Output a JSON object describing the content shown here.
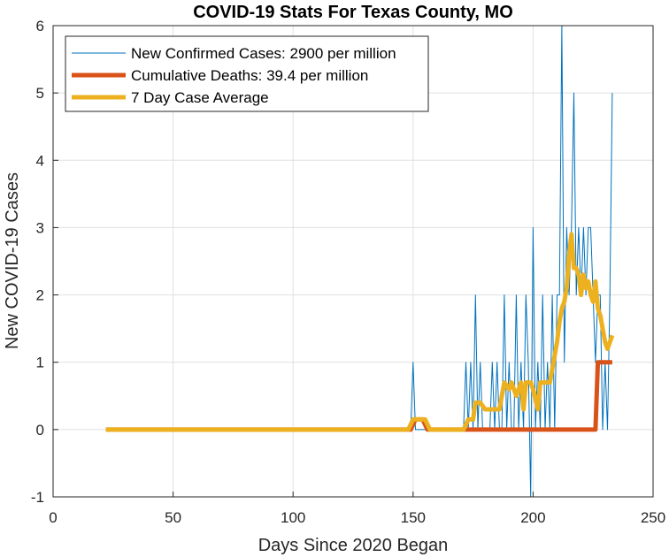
{
  "chart_data": {
    "type": "line",
    "title": "COVID-19 Stats For Texas County, MO",
    "xlabel": "Days Since 2020 Began",
    "ylabel": "New COVID-19 Cases",
    "xlim": [
      0,
      250
    ],
    "ylim": [
      -1,
      6
    ],
    "xticks": [
      0,
      50,
      100,
      150,
      200,
      250
    ],
    "yticks": [
      -1,
      0,
      1,
      2,
      3,
      4,
      5,
      6
    ],
    "grid": true,
    "legend_position": "top-left",
    "series": [
      {
        "name": "New Confirmed Cases: 2900 per million",
        "color": "#0072BD",
        "style": "thin",
        "x": [
          22,
          148,
          149,
          150,
          151,
          152,
          170,
          171,
          172,
          173,
          174,
          175,
          176,
          177,
          178,
          179,
          180,
          181,
          182,
          183,
          184,
          185,
          186,
          187,
          188,
          189,
          190,
          191,
          192,
          193,
          194,
          195,
          196,
          197,
          198,
          199,
          200,
          201,
          202,
          203,
          204,
          205,
          206,
          207,
          208,
          209,
          210,
          211,
          212,
          213,
          214,
          215,
          216,
          217,
          218,
          219,
          220,
          221,
          222,
          223,
          224,
          225,
          226,
          227,
          228,
          229,
          230,
          231,
          232,
          233
        ],
        "y": [
          0,
          0,
          0,
          1,
          0,
          0,
          0,
          0,
          1,
          0,
          1,
          0,
          2,
          0,
          1,
          0,
          0,
          0,
          0,
          1,
          0,
          1,
          0,
          0,
          2,
          0,
          1,
          0,
          0,
          2,
          0,
          1,
          0,
          2,
          1,
          -1,
          3,
          0,
          1,
          0,
          2,
          0,
          1,
          0,
          2,
          0,
          2,
          2,
          6,
          1,
          3,
          2,
          3,
          5,
          2,
          3,
          2,
          3,
          2,
          3,
          3,
          2,
          1,
          2,
          2,
          0,
          1,
          0,
          2,
          5
        ]
      },
      {
        "name": "Cumulative Deaths: 39.4 per million",
        "color": "#D95319",
        "style": "thick",
        "x": [
          22,
          149,
          151,
          154,
          156,
          171,
          172,
          226,
          227,
          233
        ],
        "y": [
          0,
          0,
          0.15,
          0.15,
          0,
          0,
          0,
          0,
          1,
          1
        ]
      },
      {
        "name": "7 Day Case Average",
        "color": "#EDB120",
        "style": "thick",
        "x": [
          22,
          148,
          150,
          152,
          155,
          157,
          171,
          173,
          175,
          176,
          178,
          180,
          182,
          184,
          186,
          187,
          188,
          190,
          191,
          193,
          195,
          196,
          197,
          199,
          200,
          202,
          203,
          205,
          207,
          208,
          210,
          211,
          212,
          213,
          214,
          215,
          216,
          217,
          218,
          219,
          220,
          221,
          222,
          223,
          224,
          225,
          226,
          227,
          228,
          229,
          230,
          231,
          232,
          233
        ],
        "y": [
          0,
          0,
          0.15,
          0.15,
          0.15,
          0,
          0,
          0.15,
          0.15,
          0.4,
          0.4,
          0.3,
          0.3,
          0.3,
          0.3,
          0.5,
          0.7,
          0.6,
          0.7,
          0.5,
          0.7,
          0.3,
          0.7,
          0.7,
          0.6,
          0.3,
          0.7,
          0.7,
          0.7,
          0.9,
          1.3,
          1.6,
          1.8,
          1.9,
          2.1,
          2.6,
          2.9,
          2.4,
          2.4,
          2.3,
          2.0,
          2.3,
          2.1,
          2.2,
          2.0,
          1.9,
          2.2,
          1.8,
          1.7,
          1.5,
          1.3,
          1.2,
          1.3,
          1.4
        ]
      }
    ]
  }
}
